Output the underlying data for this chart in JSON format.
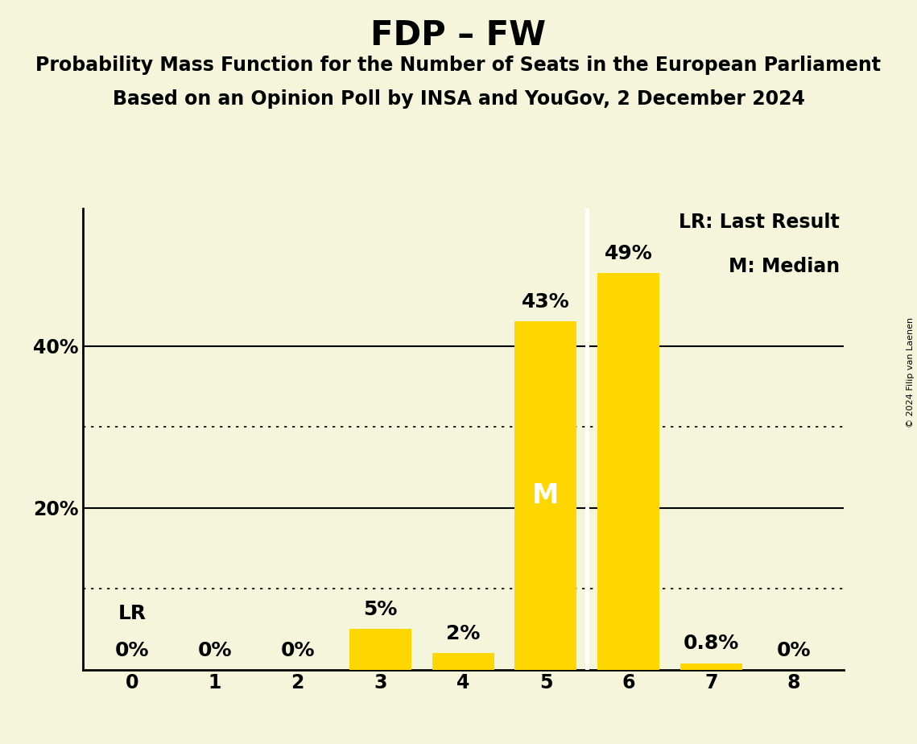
{
  "title": "FDP – FW",
  "subtitle1": "Probability Mass Function for the Number of Seats in the European Parliament",
  "subtitle2": "Based on an Opinion Poll by INSA and YouGov, 2 December 2024",
  "copyright": "© 2024 Filip van Laenen",
  "categories": [
    0,
    1,
    2,
    3,
    4,
    5,
    6,
    7,
    8
  ],
  "values": [
    0.0,
    0.0,
    0.0,
    5.0,
    2.0,
    43.0,
    49.0,
    0.8,
    0.0
  ],
  "labels": [
    "0%",
    "0%",
    "0%",
    "5%",
    "2%",
    "43%",
    "49%",
    "0.8%",
    "0%"
  ],
  "bar_color": "#FFD700",
  "bg_color": "#F5F5DC",
  "median_seat": 5,
  "lr_seat": 0,
  "median_line_color": "#FFFFFF",
  "ylim": [
    0,
    57
  ],
  "solid_yticks": [
    20,
    40
  ],
  "dotted_yticks": [
    10,
    30
  ],
  "legend_lr_text": "LR: Last Result",
  "legend_m_text": "M: Median",
  "title_fontsize": 30,
  "subtitle_fontsize": 17,
  "label_fontsize": 18,
  "tick_fontsize": 17,
  "legend_fontsize": 17,
  "bar_width": 0.75
}
